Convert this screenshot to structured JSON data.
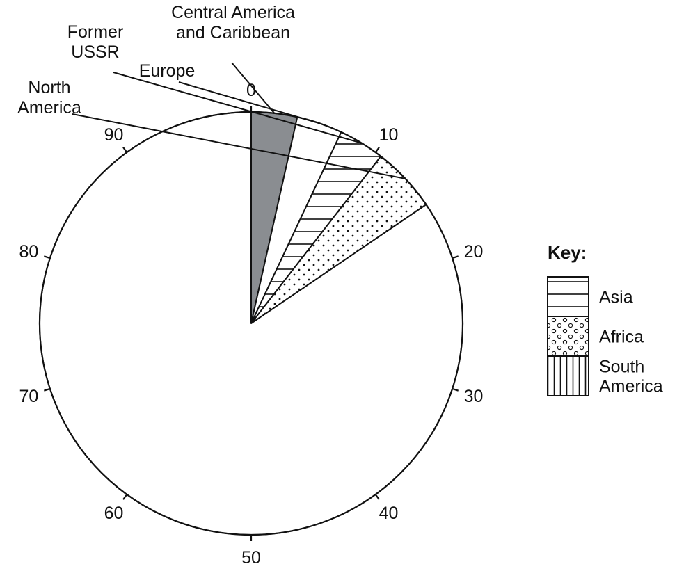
{
  "chart_data": {
    "type": "pie",
    "scale": {
      "min": 0,
      "max": 100,
      "major_step": 10,
      "direction": "clockwise",
      "start": "top"
    },
    "tick_labels": [
      "0",
      "10",
      "20",
      "30",
      "40",
      "50",
      "60",
      "70",
      "80",
      "90"
    ],
    "slices": [
      {
        "label": "Central America and Caribbean",
        "start": 0,
        "end": 3.5,
        "pattern": "solid-grey",
        "color": "#8a8d91"
      },
      {
        "label": "Europe",
        "start": 3.5,
        "end": 7.0,
        "pattern": "blank",
        "color": "#ffffff"
      },
      {
        "label": "Former USSR",
        "start": 7.0,
        "end": 10.5,
        "pattern": "horizontal-lines",
        "color": "#ffffff"
      },
      {
        "label": "North America",
        "start": 10.5,
        "end": 15.5,
        "pattern": "dots",
        "color": "#ffffff"
      },
      {
        "label": "",
        "start": 15.5,
        "end": 100,
        "pattern": "blank",
        "color": "#ffffff"
      }
    ],
    "external_labels": [
      {
        "lines": [
          "Central America",
          "and Caribbean"
        ],
        "slice": "Central America and Caribbean"
      },
      {
        "lines": [
          "Europe"
        ],
        "slice": "Europe"
      },
      {
        "lines": [
          "Former",
          "USSR"
        ],
        "slice": "Former USSR"
      },
      {
        "lines": [
          "North",
          "America"
        ],
        "slice": "North America"
      }
    ],
    "legend": {
      "title": "Key:",
      "placement": "right",
      "entries": [
        {
          "label_lines": [
            "Asia"
          ],
          "pattern": "horizontal-lines"
        },
        {
          "label_lines": [
            "Africa"
          ],
          "pattern": "circles"
        },
        {
          "label_lines": [
            "South",
            "America"
          ],
          "pattern": "vertical-lines"
        }
      ]
    }
  }
}
